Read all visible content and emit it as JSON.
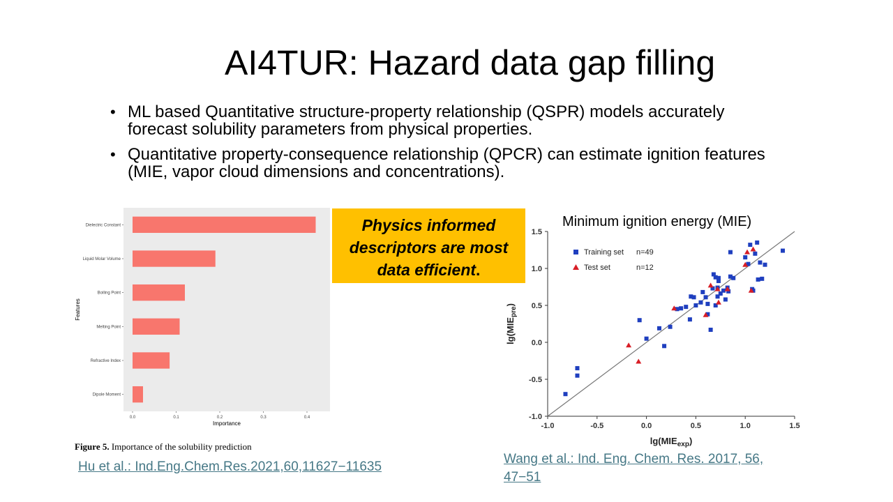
{
  "slide": {
    "title": "AI4TUR: Hazard data gap filling",
    "bullets": [
      "ML based Quantitative structure-property relationship (QSPR) models accurately forecast solubility parameters from physical properties.",
      "Quantitative property-consequence relationship (QPCR) can estimate ignition features (MIE, vapor cloud dimensions and concentrations)."
    ],
    "bullet_glyph": "•",
    "callout": {
      "line1": "Physics informed",
      "line2": "descriptors are most",
      "line3": "data efficient",
      "period": ".",
      "color": "#ffc000"
    },
    "figure_caption_label": "Figure 5.",
    "figure_caption_text": " Importance of the solubility prediction",
    "ref_left": "Hu et al.: Ind.Eng.Chem.Res.2021,60,11627−11635",
    "ref_right": "Wang et al.: Ind. Eng. Chem. Res. 2017, 56, 47−51",
    "link_color": "#467886"
  },
  "chart_data": [
    {
      "type": "bar",
      "orientation": "horizontal",
      "categories": [
        "Dielectric Constant",
        "Liquid Molar Volume",
        "Boiling Point",
        "Melting Point",
        "Refractive Index",
        "Dipole Moment"
      ],
      "values": [
        0.42,
        0.19,
        0.12,
        0.108,
        0.085,
        0.024
      ],
      "xlabel": "Importance",
      "ylabel": "Features",
      "xlim": [
        0,
        0.44
      ],
      "xticks": [
        "0.0",
        "0.1",
        "0.2",
        "0.3",
        "0.4"
      ],
      "grid": false,
      "bar_color": "#f8766d",
      "background": "#ebebeb"
    },
    {
      "type": "scatter",
      "title": "Minimum ignition energy (MIE)",
      "xlabel_base": "lg(MIE",
      "xlabel_sub": "exp",
      "ylabel_base": "lg(MIE",
      "ylabel_sub": "pre",
      "xlim": [
        -1.0,
        1.5
      ],
      "ylim": [
        -1.0,
        1.5
      ],
      "xticks": [
        "-1.0",
        "-0.5",
        "0.0",
        "0.5",
        "1.0",
        "1.5"
      ],
      "yticks": [
        "-1.0",
        "-0.5",
        "0.0",
        "0.5",
        "1.0",
        "1.5"
      ],
      "legend_position": "top-left",
      "reference_line": "y = x",
      "series": [
        {
          "name": "Training set",
          "note": "n=49",
          "marker": "square",
          "color": "#1f3fbf",
          "points": [
            [
              -0.82,
              -0.7
            ],
            [
              -0.7,
              -0.35
            ],
            [
              -0.7,
              -0.45
            ],
            [
              -0.07,
              0.3
            ],
            [
              0.0,
              0.05
            ],
            [
              0.13,
              0.19
            ],
            [
              0.18,
              -0.05
            ],
            [
              0.24,
              0.21
            ],
            [
              0.31,
              0.45
            ],
            [
              0.35,
              0.46
            ],
            [
              0.4,
              0.48
            ],
            [
              0.44,
              0.31
            ],
            [
              0.45,
              0.62
            ],
            [
              0.48,
              0.61
            ],
            [
              0.5,
              0.5
            ],
            [
              0.55,
              0.54
            ],
            [
              0.57,
              0.68
            ],
            [
              0.6,
              0.61
            ],
            [
              0.62,
              0.38
            ],
            [
              0.62,
              0.52
            ],
            [
              0.65,
              0.17
            ],
            [
              0.67,
              0.73
            ],
            [
              0.68,
              0.92
            ],
            [
              0.7,
              0.88
            ],
            [
              0.7,
              0.5
            ],
            [
              0.72,
              0.74
            ],
            [
              0.72,
              0.62
            ],
            [
              0.73,
              0.87
            ],
            [
              0.73,
              0.83
            ],
            [
              0.75,
              0.66
            ],
            [
              0.78,
              0.7
            ],
            [
              0.8,
              0.58
            ],
            [
              0.82,
              0.74
            ],
            [
              0.83,
              0.69
            ],
            [
              0.85,
              1.22
            ],
            [
              0.85,
              0.89
            ],
            [
              0.88,
              0.87
            ],
            [
              1.0,
              1.15
            ],
            [
              1.03,
              1.06
            ],
            [
              1.05,
              1.32
            ],
            [
              1.07,
              0.72
            ],
            [
              1.08,
              0.7
            ],
            [
              1.1,
              1.2
            ],
            [
              1.12,
              1.35
            ],
            [
              1.13,
              0.85
            ],
            [
              1.15,
              1.08
            ],
            [
              1.17,
              0.86
            ],
            [
              1.2,
              1.05
            ],
            [
              1.38,
              1.24
            ]
          ]
        },
        {
          "name": "Test set",
          "note": "n=12",
          "marker": "triangle",
          "color": "#d81e26",
          "points": [
            [
              -0.18,
              -0.04
            ],
            [
              -0.08,
              -0.26
            ],
            [
              0.28,
              0.46
            ],
            [
              0.6,
              0.37
            ],
            [
              0.65,
              0.77
            ],
            [
              0.72,
              0.72
            ],
            [
              0.73,
              0.54
            ],
            [
              0.82,
              0.72
            ],
            [
              1.0,
              1.05
            ],
            [
              1.02,
              1.22
            ],
            [
              1.06,
              0.7
            ],
            [
              1.08,
              1.26
            ]
          ]
        }
      ]
    }
  ]
}
